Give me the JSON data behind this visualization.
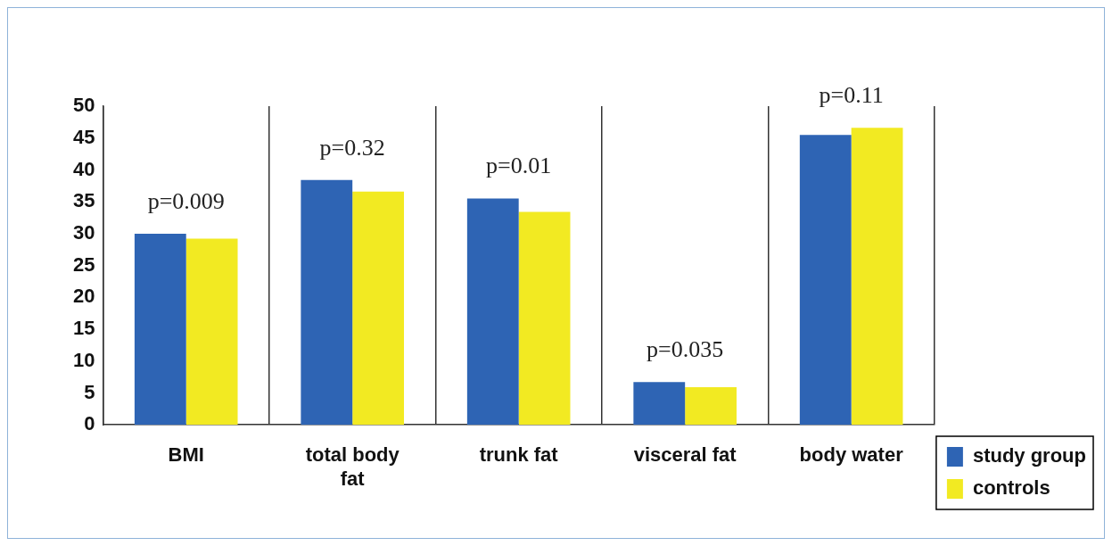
{
  "chart_data": {
    "type": "bar",
    "categories": [
      "BMI",
      "total body fat",
      "trunk fat",
      "visceral fat",
      "body water"
    ],
    "series": [
      {
        "name": "study group",
        "color": "#2e64b4",
        "values": [
          30,
          38.4,
          35.5,
          6.7,
          45.5
        ]
      },
      {
        "name": "controls",
        "color": "#f2ea22",
        "values": [
          29.2,
          36.6,
          33.4,
          5.9,
          46.6
        ]
      }
    ],
    "ylim": [
      0,
      50
    ],
    "yticks": [
      0,
      5,
      10,
      15,
      20,
      25,
      30,
      35,
      40,
      45,
      50
    ],
    "grid": "x",
    "legend": "bottom right",
    "annotations": [
      "p=0.009",
      "p=0.32",
      "p=0.01",
      "p=0.035",
      "p=0.11"
    ]
  }
}
